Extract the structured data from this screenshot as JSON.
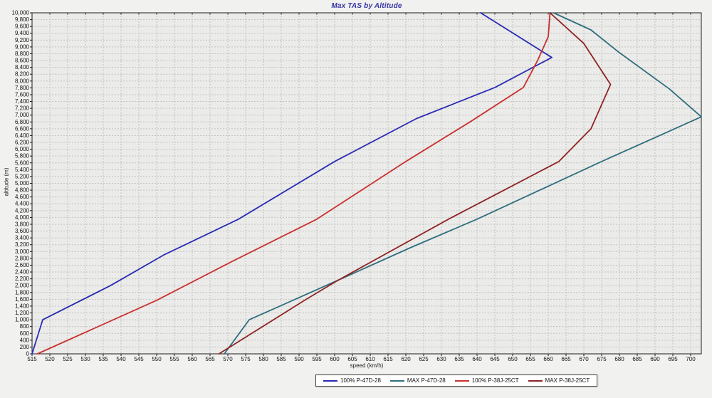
{
  "chart_data": {
    "type": "line",
    "title": "Max TAS by Altitude",
    "xlabel": "speed (km/h)",
    "ylabel": "altitude (m)",
    "xlim": [
      515,
      703
    ],
    "ylim": [
      0,
      10000
    ],
    "x_ticks": {
      "start": 515,
      "end": 700,
      "step": 5
    },
    "y_ticks": {
      "start": 0,
      "end": 10000,
      "step": 200
    },
    "grid": true,
    "legend_position": "bottom-center",
    "series": [
      {
        "name": "100% P-47D-28",
        "color": "#2a2ab4",
        "points": [
          [
            515,
            0
          ],
          [
            518,
            1000
          ],
          [
            537,
            2000
          ],
          [
            552,
            2900
          ],
          [
            573,
            3950
          ],
          [
            600,
            5640
          ],
          [
            623,
            6900
          ],
          [
            645,
            7810
          ],
          [
            661,
            8690
          ],
          [
            641,
            10000
          ]
        ]
      },
      {
        "name": "MAX P-47D-28",
        "color": "#2f6e7e",
        "points": [
          [
            569,
            0
          ],
          [
            576,
            1000
          ],
          [
            601,
            2160
          ],
          [
            621,
            3100
          ],
          [
            640,
            3950
          ],
          [
            675,
            5640
          ],
          [
            703,
            6950
          ],
          [
            694,
            7770
          ],
          [
            679.5,
            8870
          ],
          [
            672,
            9500
          ],
          [
            661.5,
            10000
          ]
        ]
      },
      {
        "name": "100% P-38J-25CT",
        "color": "#c92f2f",
        "points": [
          [
            516.5,
            0
          ],
          [
            550,
            1570
          ],
          [
            571,
            2700
          ],
          [
            595,
            3950
          ],
          [
            620,
            5640
          ],
          [
            638,
            6800
          ],
          [
            653,
            7810
          ],
          [
            657,
            8600
          ],
          [
            660,
            9300
          ],
          [
            660.5,
            10000
          ]
        ]
      },
      {
        "name": "MAX P-38J-25CT",
        "color": "#8e2424",
        "points": [
          [
            567.5,
            0
          ],
          [
            592,
            1600
          ],
          [
            601,
            2160
          ],
          [
            632,
            3950
          ],
          [
            663,
            5640
          ],
          [
            672,
            6600
          ],
          [
            677.5,
            7900
          ],
          [
            670,
            9100
          ],
          [
            660.5,
            10000
          ]
        ]
      }
    ],
    "plot_colors": {
      "page_background": "#f1f1ef",
      "plot_background": "#ebebe9",
      "grid": "#c2c2c0",
      "border": "#1b1b1b",
      "tick_text": "#111111",
      "title": "#3434a6"
    }
  }
}
